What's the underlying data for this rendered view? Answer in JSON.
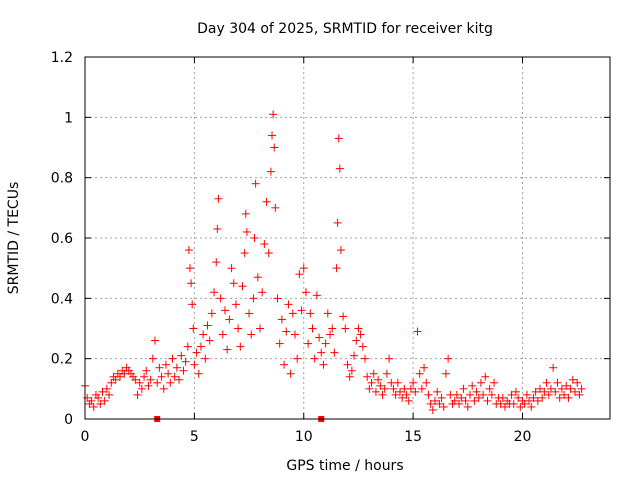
{
  "chart_data": {
    "type": "scatter",
    "title": "Day 304 of 2025, SRMTID for receiver kitg",
    "xlabel": "GPS time / hours",
    "ylabel": "SRMTID / TECUs",
    "xlim": [
      0,
      24
    ],
    "ylim": [
      0,
      1.2
    ],
    "xticks": [
      0,
      5,
      10,
      15,
      20
    ],
    "yticks": [
      0,
      0.2,
      0.4,
      0.6,
      0.8,
      1,
      1.2
    ],
    "ytick_labels": [
      "0",
      "0.2",
      "0.4",
      "0.6",
      "0.8",
      "1",
      "1.2"
    ],
    "grid": true,
    "marker": "+",
    "color": "#ff0000",
    "series": [
      {
        "name": "SRMTID",
        "points": [
          [
            0.0,
            0.11
          ],
          [
            0.1,
            0.07
          ],
          [
            0.2,
            0.05
          ],
          [
            0.3,
            0.06
          ],
          [
            0.4,
            0.04
          ],
          [
            0.5,
            0.08
          ],
          [
            0.6,
            0.07
          ],
          [
            0.7,
            0.05
          ],
          [
            0.8,
            0.09
          ],
          [
            0.9,
            0.06
          ],
          [
            1.0,
            0.1
          ],
          [
            1.1,
            0.08
          ],
          [
            1.2,
            0.12
          ],
          [
            1.3,
            0.14
          ],
          [
            1.4,
            0.13
          ],
          [
            1.5,
            0.15
          ],
          [
            1.6,
            0.14
          ],
          [
            1.7,
            0.16
          ],
          [
            1.8,
            0.15
          ],
          [
            1.9,
            0.17
          ],
          [
            2.0,
            0.16
          ],
          [
            2.1,
            0.15
          ],
          [
            2.2,
            0.14
          ],
          [
            2.3,
            0.13
          ],
          [
            2.4,
            0.08
          ],
          [
            2.5,
            0.12
          ],
          [
            2.6,
            0.1
          ],
          [
            2.7,
            0.14
          ],
          [
            2.8,
            0.16
          ],
          [
            2.9,
            0.11
          ],
          [
            3.0,
            0.13
          ],
          [
            3.1,
            0.2
          ],
          [
            3.2,
            0.26
          ],
          [
            3.3,
            0.12
          ],
          [
            3.4,
            0.17
          ],
          [
            3.5,
            0.14
          ],
          [
            3.6,
            0.1
          ],
          [
            3.7,
            0.18
          ],
          [
            3.8,
            0.15
          ],
          [
            3.9,
            0.12
          ],
          [
            4.0,
            0.2
          ],
          [
            4.1,
            0.14
          ],
          [
            4.2,
            0.17
          ],
          [
            4.3,
            0.13
          ],
          [
            4.4,
            0.21
          ],
          [
            4.5,
            0.16
          ],
          [
            4.6,
            0.19
          ],
          [
            4.7,
            0.24
          ],
          [
            4.75,
            0.56
          ],
          [
            4.8,
            0.5
          ],
          [
            4.85,
            0.45
          ],
          [
            4.9,
            0.38
          ],
          [
            4.95,
            0.3
          ],
          [
            5.0,
            0.18
          ],
          [
            5.1,
            0.22
          ],
          [
            5.2,
            0.15
          ],
          [
            5.3,
            0.24
          ],
          [
            5.4,
            0.28
          ],
          [
            5.5,
            0.2
          ],
          [
            5.6,
            0.31
          ],
          [
            5.7,
            0.26
          ],
          [
            5.8,
            0.35
          ],
          [
            5.9,
            0.42
          ],
          [
            6.0,
            0.52
          ],
          [
            6.05,
            0.63
          ],
          [
            6.1,
            0.73
          ],
          [
            6.2,
            0.4
          ],
          [
            6.3,
            0.28
          ],
          [
            6.4,
            0.36
          ],
          [
            6.5,
            0.23
          ],
          [
            6.6,
            0.33
          ],
          [
            6.7,
            0.5
          ],
          [
            6.8,
            0.45
          ],
          [
            6.9,
            0.38
          ],
          [
            7.0,
            0.3
          ],
          [
            7.1,
            0.24
          ],
          [
            7.2,
            0.44
          ],
          [
            7.3,
            0.55
          ],
          [
            7.35,
            0.68
          ],
          [
            7.4,
            0.62
          ],
          [
            7.5,
            0.35
          ],
          [
            7.6,
            0.28
          ],
          [
            7.7,
            0.4
          ],
          [
            7.75,
            0.6
          ],
          [
            7.8,
            0.78
          ],
          [
            7.9,
            0.47
          ],
          [
            8.0,
            0.3
          ],
          [
            8.1,
            0.42
          ],
          [
            8.2,
            0.58
          ],
          [
            8.3,
            0.72
          ],
          [
            8.4,
            0.55
          ],
          [
            8.5,
            0.82
          ],
          [
            8.55,
            0.94
          ],
          [
            8.6,
            1.01
          ],
          [
            8.65,
            0.9
          ],
          [
            8.7,
            0.7
          ],
          [
            8.8,
            0.4
          ],
          [
            8.9,
            0.25
          ],
          [
            9.0,
            0.33
          ],
          [
            9.1,
            0.18
          ],
          [
            9.2,
            0.29
          ],
          [
            9.3,
            0.38
          ],
          [
            9.4,
            0.15
          ],
          [
            9.5,
            0.35
          ],
          [
            9.6,
            0.28
          ],
          [
            9.7,
            0.2
          ],
          [
            9.8,
            0.48
          ],
          [
            9.9,
            0.36
          ],
          [
            10.0,
            0.5
          ],
          [
            10.1,
            0.42
          ],
          [
            10.2,
            0.25
          ],
          [
            10.3,
            0.35
          ],
          [
            10.4,
            0.3
          ],
          [
            10.5,
            0.2
          ],
          [
            10.6,
            0.41
          ],
          [
            10.7,
            0.27
          ],
          [
            10.8,
            0.22
          ],
          [
            10.9,
            0.18
          ],
          [
            11.0,
            0.25
          ],
          [
            11.1,
            0.35
          ],
          [
            11.2,
            0.28
          ],
          [
            11.3,
            0.3
          ],
          [
            11.4,
            0.22
          ],
          [
            11.5,
            0.5
          ],
          [
            11.55,
            0.65
          ],
          [
            11.6,
            0.93
          ],
          [
            11.65,
            0.83
          ],
          [
            11.7,
            0.56
          ],
          [
            11.8,
            0.34
          ],
          [
            11.9,
            0.3
          ],
          [
            12.0,
            0.18
          ],
          [
            12.1,
            0.14
          ],
          [
            12.2,
            0.16
          ],
          [
            12.3,
            0.21
          ],
          [
            12.4,
            0.26
          ],
          [
            12.5,
            0.3
          ],
          [
            12.6,
            0.28
          ],
          [
            12.7,
            0.24
          ],
          [
            12.8,
            0.2
          ],
          [
            12.9,
            0.14
          ],
          [
            13.0,
            0.1
          ],
          [
            13.1,
            0.12
          ],
          [
            13.2,
            0.15
          ],
          [
            13.3,
            0.09
          ],
          [
            13.4,
            0.13
          ],
          [
            13.5,
            0.11
          ],
          [
            13.6,
            0.08
          ],
          [
            13.7,
            0.1
          ],
          [
            13.8,
            0.15
          ],
          [
            13.9,
            0.2
          ],
          [
            14.0,
            0.12
          ],
          [
            14.1,
            0.1
          ],
          [
            14.2,
            0.08
          ],
          [
            14.3,
            0.12
          ],
          [
            14.4,
            0.09
          ],
          [
            14.5,
            0.07
          ],
          [
            14.6,
            0.1
          ],
          [
            14.7,
            0.08
          ],
          [
            14.8,
            0.06
          ],
          [
            14.9,
            0.1
          ],
          [
            15.0,
            0.12
          ],
          [
            15.1,
            0.09
          ],
          [
            15.2,
            0.29
          ],
          [
            15.3,
            0.15
          ],
          [
            15.4,
            0.1
          ],
          [
            15.5,
            0.17
          ],
          [
            15.6,
            0.12
          ],
          [
            15.7,
            0.08
          ],
          [
            15.8,
            0.05
          ],
          [
            15.9,
            0.03
          ],
          [
            16.0,
            0.06
          ],
          [
            16.1,
            0.09
          ],
          [
            16.2,
            0.05
          ],
          [
            16.3,
            0.07
          ],
          [
            16.4,
            0.04
          ],
          [
            16.5,
            0.15
          ],
          [
            16.6,
            0.2
          ],
          [
            16.7,
            0.08
          ],
          [
            16.8,
            0.05
          ],
          [
            16.9,
            0.06
          ],
          [
            17.0,
            0.08
          ],
          [
            17.1,
            0.05
          ],
          [
            17.2,
            0.07
          ],
          [
            17.3,
            0.1
          ],
          [
            17.4,
            0.06
          ],
          [
            17.5,
            0.04
          ],
          [
            17.6,
            0.08
          ],
          [
            17.7,
            0.11
          ],
          [
            17.8,
            0.06
          ],
          [
            17.9,
            0.09
          ],
          [
            18.0,
            0.07
          ],
          [
            18.1,
            0.12
          ],
          [
            18.2,
            0.08
          ],
          [
            18.3,
            0.14
          ],
          [
            18.4,
            0.06
          ],
          [
            18.5,
            0.1
          ],
          [
            18.6,
            0.08
          ],
          [
            18.7,
            0.12
          ],
          [
            18.8,
            0.05
          ],
          [
            18.9,
            0.07
          ],
          [
            19.0,
            0.05
          ],
          [
            19.1,
            0.07
          ],
          [
            19.2,
            0.04
          ],
          [
            19.3,
            0.06
          ],
          [
            19.4,
            0.05
          ],
          [
            19.5,
            0.08
          ],
          [
            19.6,
            0.05
          ],
          [
            19.7,
            0.09
          ],
          [
            19.8,
            0.07
          ],
          [
            19.9,
            0.04
          ],
          [
            20.0,
            0.06
          ],
          [
            20.1,
            0.05
          ],
          [
            20.2,
            0.08
          ],
          [
            20.3,
            0.06
          ],
          [
            20.4,
            0.04
          ],
          [
            20.5,
            0.07
          ],
          [
            20.6,
            0.09
          ],
          [
            20.7,
            0.06
          ],
          [
            20.8,
            0.1
          ],
          [
            20.9,
            0.07
          ],
          [
            21.0,
            0.09
          ],
          [
            21.1,
            0.12
          ],
          [
            21.2,
            0.08
          ],
          [
            21.3,
            0.1
          ],
          [
            21.4,
            0.17
          ],
          [
            21.5,
            0.09
          ],
          [
            21.6,
            0.12
          ],
          [
            21.7,
            0.07
          ],
          [
            21.8,
            0.1
          ],
          [
            21.9,
            0.08
          ],
          [
            22.0,
            0.11
          ],
          [
            22.1,
            0.07
          ],
          [
            22.2,
            0.1
          ],
          [
            22.3,
            0.13
          ],
          [
            22.4,
            0.09
          ],
          [
            22.5,
            0.12
          ],
          [
            22.6,
            0.08
          ],
          [
            22.7,
            0.1
          ]
        ]
      }
    ],
    "edge_markers_x": [
      3.3,
      10.8
    ]
  }
}
